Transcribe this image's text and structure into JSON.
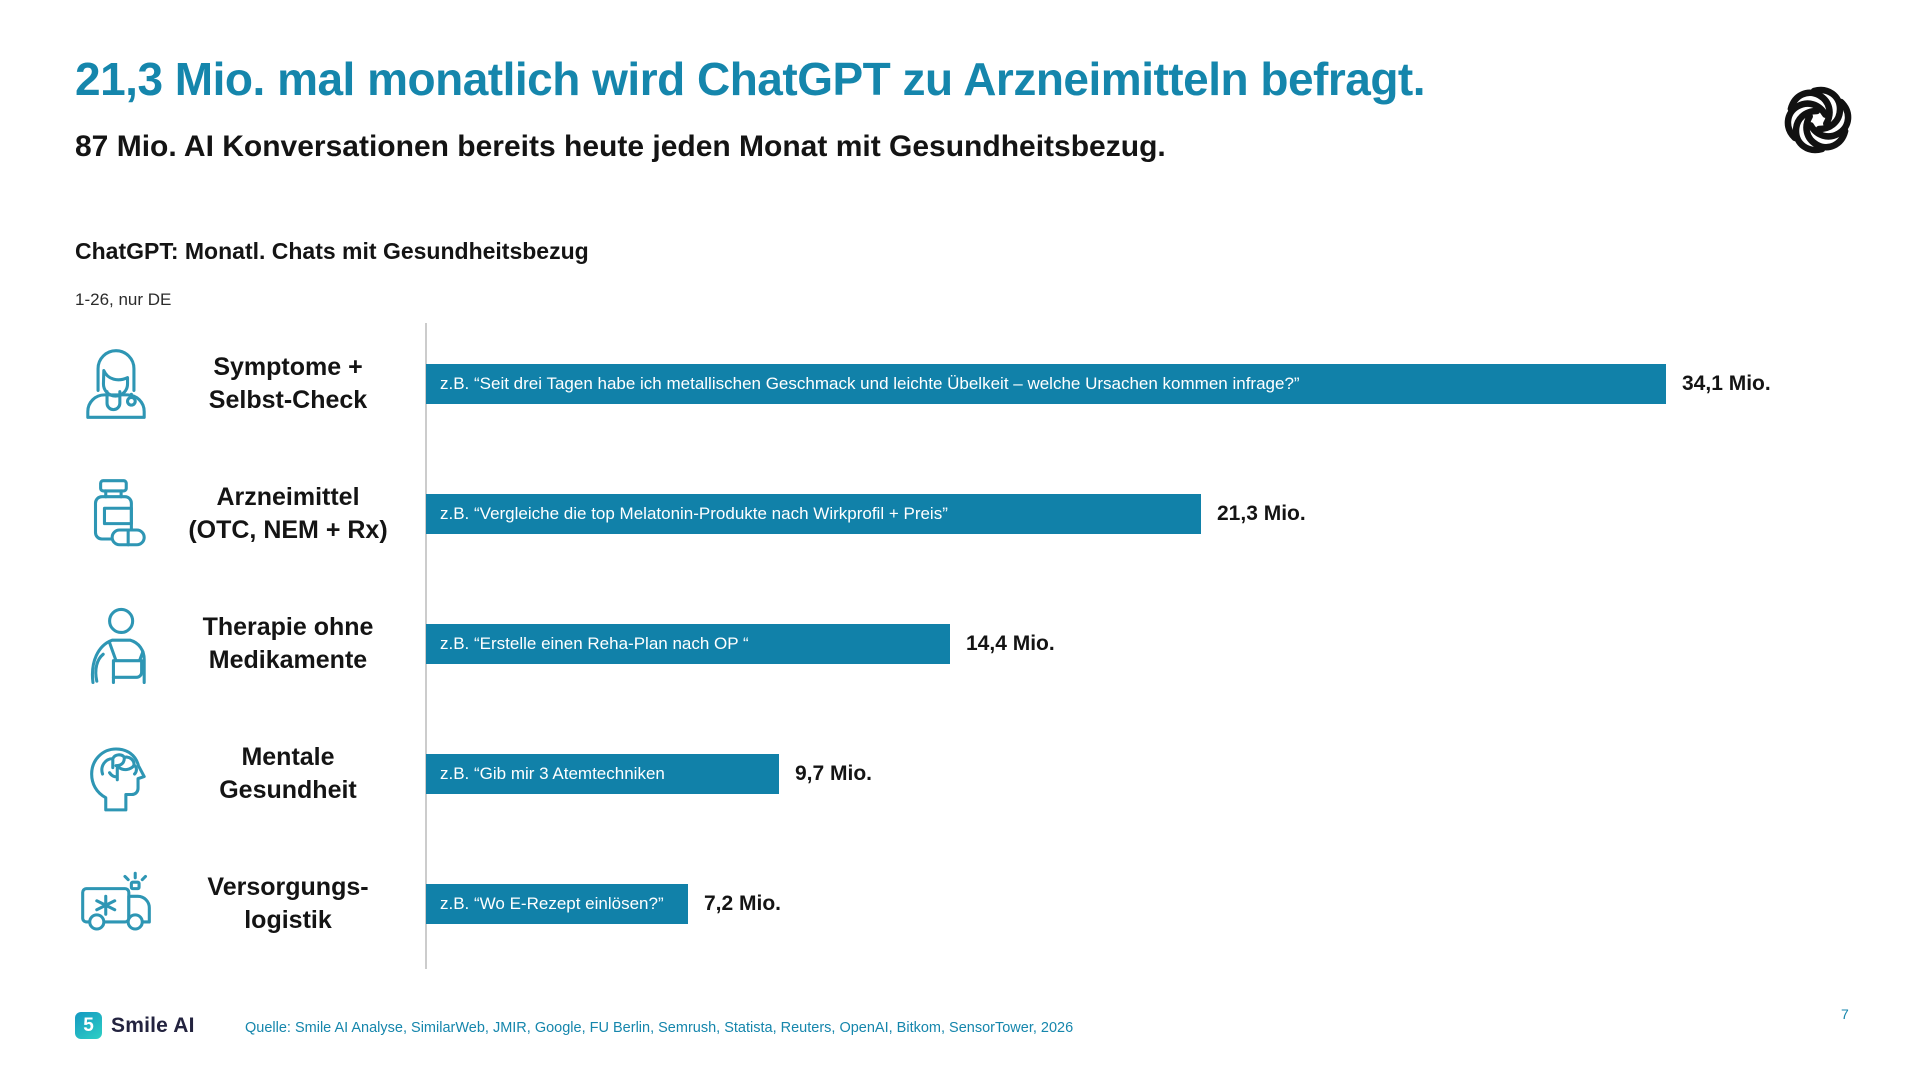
{
  "slide": {
    "title": "21,3 Mio. mal monatlich wird ChatGPT zu Arzneimitteln befragt.",
    "subtitle": "87 Mio. AI Konversationen bereits heute jeden Monat mit Gesundheitsbezug.",
    "page_number": "7",
    "source": "Quelle: Smile AI Analyse, SimilarWeb, JMIR, Google, FU Berlin, Semrush, Statista, Reuters, OpenAI, Bitkom, SensorTower, 2026",
    "brand": {
      "name": "Smile AI",
      "icon_glyph": "5"
    },
    "top_right_icon": "openai-logo"
  },
  "chart_header": {
    "title": "ChatGPT: Monatl. Chats mit Gesundheitsbezug",
    "subtitle": "1-26, nur DE"
  },
  "chart_data": {
    "type": "bar",
    "orientation": "horizontal",
    "title": "ChatGPT: Monatl. Chats mit Gesundheitsbezug",
    "subtitle": "1-26, nur DE",
    "unit": "Mio.",
    "xlim": [
      0,
      34.1
    ],
    "grid": false,
    "bar_color": "#1181a9",
    "categories": [
      "Symptome + Selbst-Check",
      "Arzneimittel (OTC, NEM + Rx)",
      "Therapie ohne Medikamente",
      "Mentale Gesundheit",
      "Versorgungslogistik"
    ],
    "category_lines": [
      [
        "Symptome +",
        "Selbst-Check"
      ],
      [
        "Arzneimittel",
        "(OTC, NEM + Rx)"
      ],
      [
        "Therapie ohne",
        "Medikamente"
      ],
      [
        "Mentale",
        "Gesundheit"
      ],
      [
        "Versorgungs-",
        "logistik"
      ]
    ],
    "values": [
      34.1,
      21.3,
      14.4,
      9.7,
      7.2
    ],
    "value_labels": [
      "34,1 Mio.",
      "21,3 Mio.",
      "14,4 Mio.",
      "9,7 Mio.",
      "7,2 Mio."
    ],
    "bar_annotations": [
      "z.B. “Seit drei Tagen habe ich metallischen Geschmack und leichte Übelkeit – welche Ursachen kommen infrage?”",
      "z.B. “Vergleiche die top Melatonin-Produkte nach Wirkprofil + Preis”",
      "z.B. “Erstelle einen Reha-Plan nach OP “",
      "z.B. “Gib mir 3 Atemtechniken",
      "z.B. “Wo E-Rezept einlösen?”"
    ],
    "icons": [
      "doctor-icon",
      "medicine-bottle-icon",
      "arm-sling-icon",
      "brain-head-icon",
      "ambulance-icon"
    ]
  },
  "colors": {
    "accent_teal": "#1586ac",
    "bar": "#1181a9",
    "icon_stroke": "#2e96b4",
    "text_dark": "#141414",
    "axis_gray": "#cccccc"
  }
}
